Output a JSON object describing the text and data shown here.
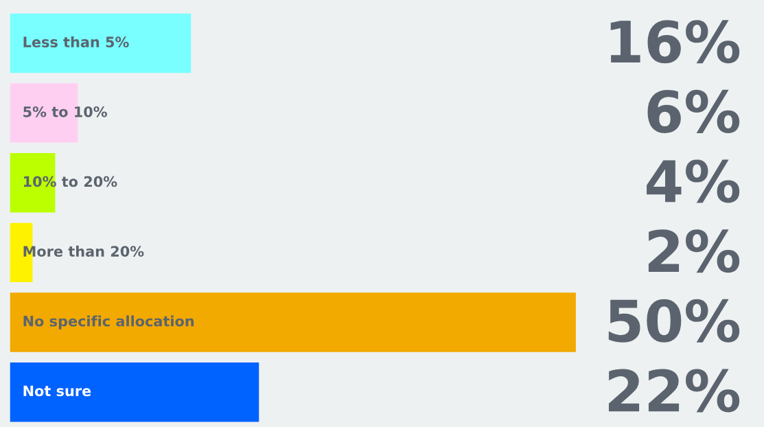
{
  "chart_data": {
    "type": "bar",
    "orientation": "horizontal",
    "categories": [
      "Less than 5%",
      "5% to 10%",
      "10% to 20%",
      "More than 20%",
      "No specific allocation",
      "Not sure"
    ],
    "values": [
      16,
      6,
      4,
      2,
      50,
      22
    ],
    "colors": [
      "#79ffff",
      "#ffcff2",
      "#bbff00",
      "#fff200",
      "#f2a900",
      "#0062ff"
    ],
    "value_labels": [
      "16%",
      "6%",
      "4%",
      "2%",
      "50%",
      "22%"
    ]
  }
}
